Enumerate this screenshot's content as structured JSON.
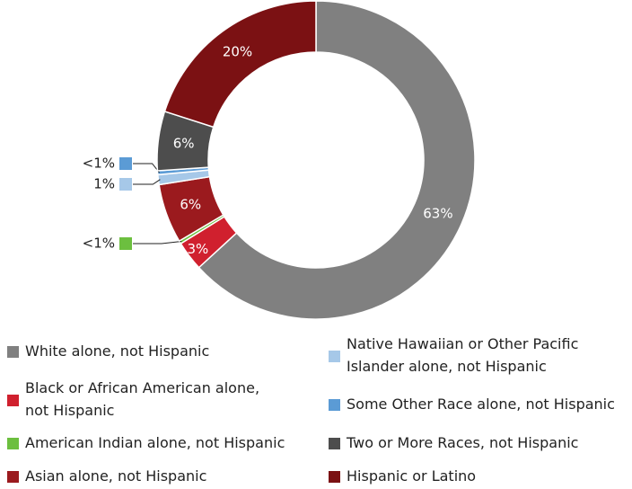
{
  "chart_data": {
    "type": "donut",
    "categories": [
      "White alone, not Hispanic",
      "Black or African American alone, not Hispanic",
      "American Indian alone, not Hispanic",
      "Asian alone, not Hispanic",
      "Native Hawaiian or Other Pacific Islander alone, not Hispanic",
      "Some Other Race alone, not Hispanic",
      "Two or More Races, not Hispanic",
      "Hispanic or Latino"
    ],
    "values": [
      63,
      3,
      0.3,
      6,
      1,
      0.4,
      6,
      20
    ],
    "value_labels": [
      "63%",
      "3%",
      "<1%",
      "6%",
      "1%",
      "<1%",
      "6%",
      "20%"
    ],
    "colors": [
      "#808080",
      "#d0202e",
      "#6cbf3f",
      "#9b1a1e",
      "#a6c8e8",
      "#5b9bd5",
      "#4d4d4d",
      "#7b1113"
    ]
  }
}
